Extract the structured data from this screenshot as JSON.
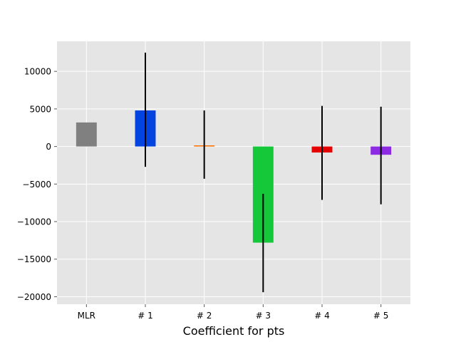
{
  "chart_data": {
    "type": "bar",
    "xlabel": "Coefficient for pts",
    "ylabel": "",
    "title": "",
    "ylim": [
      -21000,
      14000
    ],
    "yticks": [
      -20000,
      -15000,
      -10000,
      -5000,
      0,
      5000,
      10000
    ],
    "yticklabels": [
      "−20000",
      "−15000",
      "−10000",
      "−5000",
      "0",
      "5000",
      "10000"
    ],
    "categories": [
      "MLR",
      "# 1",
      "# 2",
      "# 3",
      "# 4",
      "# 5"
    ],
    "values": [
      3200,
      4800,
      150,
      -12800,
      -800,
      -1100
    ],
    "error_low": [
      null,
      -2700,
      -4300,
      -19400,
      -7100,
      -7700
    ],
    "error_high": [
      null,
      12500,
      4800,
      -6300,
      5400,
      5300
    ],
    "colors": [
      "#808080",
      "#0343df",
      "#f97306",
      "#15c83a",
      "#e50000",
      "#8c2be2"
    ],
    "grid": true,
    "background": "#e5e5e5"
  }
}
